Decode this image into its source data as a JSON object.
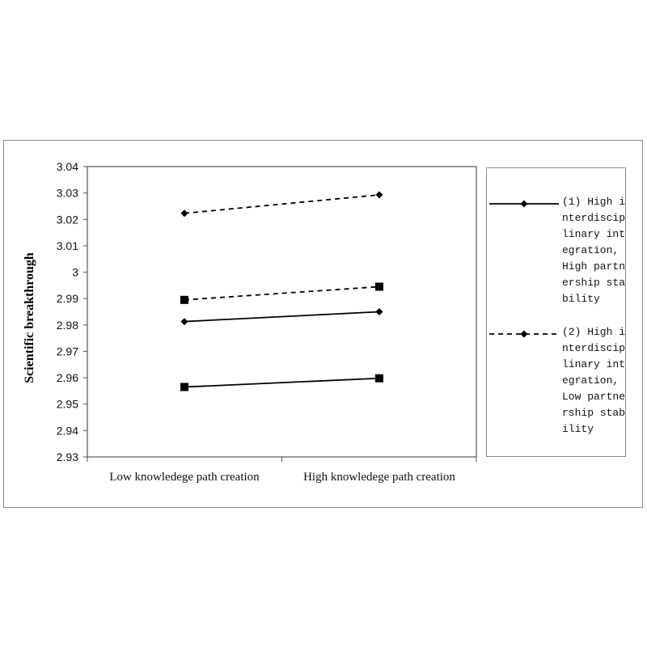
{
  "chart_data": {
    "type": "line",
    "categories": [
      "Low knowledege path creation",
      "High knowledege path creation"
    ],
    "ylabel": "Scientific breakthrough",
    "xlabel": "",
    "ylim": [
      2.93,
      3.04
    ],
    "yticks": [
      "3.04",
      "3.03",
      "3.02",
      "3.01",
      "3",
      "2.99",
      "2.98",
      "2.97",
      "2.96",
      "2.95",
      "2.94",
      "2.93"
    ],
    "grid": false,
    "legend_position": "right",
    "series": [
      {
        "name": "(1) High interdisciplinary integration, High partnership stability",
        "values": [
          2.9813,
          2.985
        ],
        "style": "solid",
        "marker": "diamond"
      },
      {
        "name": "(2) High interdisciplinary integration, Low partnership stability",
        "values": [
          3.0223,
          3.0293
        ],
        "style": "dashed",
        "marker": "diamond"
      },
      {
        "name": "",
        "values": [
          2.9895,
          2.9945
        ],
        "style": "dashed",
        "marker": "square"
      },
      {
        "name": "",
        "values": [
          2.9565,
          2.9598
        ],
        "style": "solid",
        "marker": "square"
      }
    ]
  },
  "legend": [
    {
      "text": "(1) High interdisciplinary integration, High partnership stability",
      "style": "solid"
    },
    {
      "text": "(2) High interdisciplinary integration, Low partnership stability",
      "style": "dashed"
    }
  ]
}
